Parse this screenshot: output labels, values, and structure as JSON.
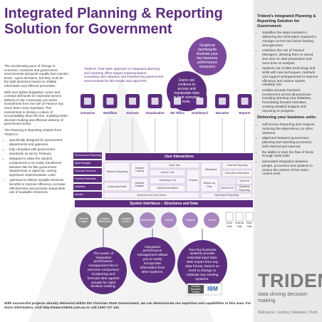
{
  "header": {
    "title_lines": [
      "Integrated Planning & Reporting",
      "Solution for Government"
    ]
  },
  "intro": {
    "paragraphs": [
      "The accelerating pace of change in economic, business and government environments demands equally fast reaction times - quick decisions, but they must be the right decisions based on reliable information and efficient processes.",
      "With ever tighter budgetary cycles and constant demands for improved service delivery to the community, pro-active involvement from the role of Finance has never been more important. This involvement is driving a culture of accountability down the line, enabling better decision-making and effective delivery of government policy.",
      "The Planning & Reporting solution from Trident is:"
    ],
    "bullets": [
      "specifically designed for government departments and agencies",
      "fully compliant with government standards as set by Treasury",
      "designed to allow the solution components to be easily transferred between like-for-like government departments or agencies, saving significant implementation costs",
      "optimised to deliver tangible business benefits to improve efficiency, increase effectiveness and promote sustainable use of available resources."
    ]
  },
  "approach": "Trident's 'Fast Start' approach to integrated planning and reporting offers staged implementation - increasing user adoption and transforming government environments for fast results and rapid ROI.",
  "callouts": {
    "dashboards": "Graphical dashboards illustrate your key business performance measures",
    "users": "Users can continue to access and manipulate data in their everyday tools."
  },
  "diagram": {
    "tools": [
      "Scenarios",
      "Workflow",
      "Journals",
      "Visualisation",
      "MS Office",
      "Dashboard",
      "Narrative",
      "Reports"
    ],
    "layers": {
      "user": "User Interactions",
      "system": "System Interfaces – Structures and Data"
    },
    "processes": [
      "Performance Reporting",
      "Board Budget",
      "Forecast Year-end",
      "Forward Estimates",
      "Initiatives",
      "Actuals"
    ],
    "modules": [
      "Variance Reporting",
      "Supporting Detail",
      "Initiative Costing",
      "Initiative Register",
      "Audit Trail",
      "Labour Cost",
      "Operating Cost",
      "Capital Expenditure",
      "Projects",
      "Revenue and Cost Drivers",
      "Allocations",
      "Bottom-up Plan",
      "External Reporting",
      "Executive Information",
      "Year-End",
      "Month-End",
      "Quarterly Reporting",
      "Operational Reporting"
    ],
    "sources": [
      "General Ledger",
      "Analysis Workbooks",
      "Analysis Drivers",
      "Procurement",
      "Payroll",
      "Projects",
      "Grants",
      "Excel Data",
      "External Data",
      "Other Data"
    ]
  },
  "benefits": [
    "The power of integrated performance management lies in real time comparison of planning and forecast data against actuals for rapid decision making.",
    "Integrated performance management allows you to easily incorporate information from other systems.",
    "Your key business systems provide essential input data. With import from any data format, there's no need to change or replicate any existing systems."
  ],
  "footer": "With successful projects already delivered within the Victorian State Government, we can demonstrate our expertise and capabilities in this area. For more information, visit http://www.trident.com.au or call 1300 737 141.",
  "sidebar": {
    "title": "Trident's Integrated Planning & Reporting Solution for Government:",
    "bullets": [
      "simplifies the steps involved in delivering the information required to manage current and future funding arrangements",
      "redefines the role of Finance Managers, allowing them to spend less time on data preparation and more time on analysis",
      "replaces out of date technology and skills with new techniques, methods and support arrangements to improve efficiency and reduce system reliability risk",
      "enables broader business involvement across all processes including planning new initiatives, formulating forward estimates, creating detailed budgets and reporting on progress."
    ],
    "subtitle": "Delivering your business units:",
    "sub_bullets": [
      "self-service Reporting and Analysis, reducing the dependency on other divisions.",
      "alignment between government planning and reporting processes, both internal and external.",
      "the ability to track the flow of funds through audit trails",
      "automated integration between people, processes and systems to reduce the volume of low-value, routine work."
    ]
  },
  "brand": {
    "name": "TRIDENT",
    "tagline": "data driving decision making",
    "cities": [
      "Melbourne",
      "Sydney",
      "Adelaide",
      "Perth"
    ],
    "partner": "Premier Business Partner",
    "partner_brand": "IBM"
  }
}
